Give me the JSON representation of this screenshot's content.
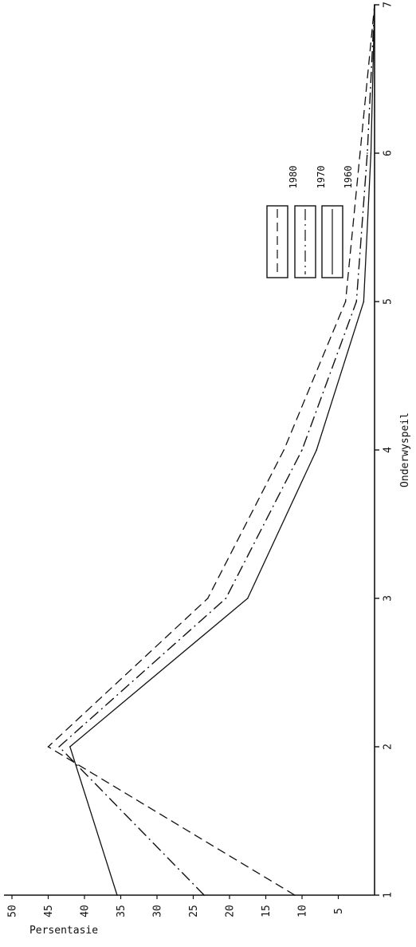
{
  "chart_data": {
    "type": "line",
    "orientation": "rotated-90-clockwise",
    "xlabel": "Onderwyspeil",
    "ylabel": "Persentasie",
    "x": [
      1,
      2,
      3,
      4,
      5,
      6,
      7
    ],
    "x_tick_labels": [
      "1",
      "2",
      "3",
      "4",
      "5",
      "6",
      "7"
    ],
    "y_tick_labels": [
      "50",
      "45",
      "40",
      "35",
      "30",
      "25",
      "20",
      "15",
      "10",
      "5"
    ],
    "ylim": [
      0,
      50
    ],
    "xlim": [
      1,
      7
    ],
    "grid": false,
    "legend_position": "right",
    "series": [
      {
        "name": "1960",
        "dash": "solid",
        "values": [
          35.5,
          42,
          17.5,
          8,
          1.5,
          0.5,
          0
        ]
      },
      {
        "name": "1970",
        "dash": "dashdot",
        "values": [
          23.5,
          43.5,
          20.5,
          10,
          2.5,
          1,
          0
        ]
      },
      {
        "name": "1980",
        "dash": "dashed",
        "values": [
          11,
          45,
          23,
          12.5,
          4,
          2,
          0
        ]
      }
    ]
  }
}
